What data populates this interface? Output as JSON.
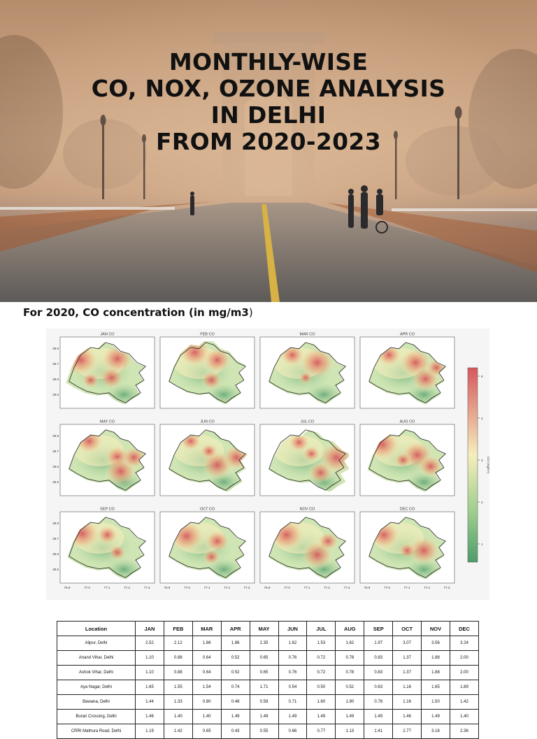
{
  "hero": {
    "title_lines": [
      "MONTHLY-WISE",
      "CO, NOX, OZONE ANALYSIS",
      "IN DELHI",
      "FROM 2020-2023"
    ]
  },
  "section": {
    "heading": "For 2020, CO concentration (in mg/m3",
    "heading_close": ")"
  },
  "maps": {
    "panels": [
      {
        "title": "JAN CO",
        "hot": [
          [
            0.18,
            0.3,
            1.0
          ],
          [
            0.62,
            0.28,
            0.9
          ],
          [
            0.55,
            0.58,
            0.7
          ],
          [
            0.3,
            0.62,
            0.5
          ]
        ]
      },
      {
        "title": "FEB CO",
        "hot": [
          [
            0.35,
            0.18,
            0.9
          ],
          [
            0.62,
            0.3,
            0.8
          ],
          [
            0.55,
            0.62,
            0.6
          ]
        ]
      },
      {
        "title": "MAR CO",
        "hot": [
          [
            0.32,
            0.22,
            0.7
          ],
          [
            0.62,
            0.34,
            1.0
          ],
          [
            0.48,
            0.58,
            0.4
          ]
        ]
      },
      {
        "title": "APR CO",
        "hot": [
          [
            0.28,
            0.22,
            0.7
          ],
          [
            0.6,
            0.34,
            0.9
          ],
          [
            0.72,
            0.6,
            0.8
          ],
          [
            0.85,
            0.42,
            0.6
          ]
        ]
      },
      {
        "title": "MAY CO",
        "hot": [
          [
            0.28,
            0.2,
            0.8
          ],
          [
            0.62,
            0.45,
            0.7
          ],
          [
            0.66,
            0.68,
            0.9
          ],
          [
            0.82,
            0.46,
            0.7
          ]
        ]
      },
      {
        "title": "JUN CO",
        "hot": [
          [
            0.3,
            0.2,
            0.6
          ],
          [
            0.62,
            0.58,
            0.9
          ],
          [
            0.85,
            0.46,
            0.8
          ],
          [
            0.52,
            0.36,
            0.5
          ]
        ]
      },
      {
        "title": "JUL CO",
        "hot": [
          [
            0.4,
            0.22,
            0.6
          ],
          [
            0.85,
            0.46,
            1.0
          ],
          [
            0.66,
            0.7,
            0.7
          ],
          [
            0.55,
            0.4,
            0.5
          ]
        ]
      },
      {
        "title": "AUG CO",
        "hot": [
          [
            0.2,
            0.25,
            1.0
          ],
          [
            0.62,
            0.42,
            0.9
          ],
          [
            0.78,
            0.6,
            0.7
          ],
          [
            0.45,
            0.5,
            0.5
          ]
        ]
      },
      {
        "title": "SEP CO",
        "hot": [
          [
            0.2,
            0.28,
            1.0
          ],
          [
            0.5,
            0.3,
            0.6
          ],
          [
            0.62,
            0.58,
            0.5
          ]
        ]
      },
      {
        "title": "OCT CO",
        "hot": [
          [
            0.25,
            0.32,
            1.0
          ],
          [
            0.62,
            0.4,
            0.7
          ],
          [
            0.55,
            0.65,
            0.5
          ]
        ]
      },
      {
        "title": "NOV CO",
        "hot": [
          [
            0.25,
            0.3,
            1.0
          ],
          [
            0.62,
            0.62,
            0.9
          ],
          [
            0.75,
            0.4,
            0.6
          ]
        ]
      },
      {
        "title": "DEC CO",
        "hot": [
          [
            0.22,
            0.3,
            0.9
          ],
          [
            0.7,
            0.55,
            0.9
          ],
          [
            0.5,
            0.55,
            0.5
          ]
        ]
      }
    ],
    "y_ticks": [
      "28.9",
      "28.7",
      "28.6",
      "28.5"
    ],
    "x_ticks": [
      "76.9",
      "77.0",
      "77.1",
      "77.2",
      "77.3"
    ],
    "colorbar_ticks": [
      "5",
      "4",
      "3",
      "2",
      "1"
    ],
    "colorbar_label": "CO (mg/m³)",
    "colors": {
      "low": "#4e9c6c",
      "mid": "#f5eebd",
      "high": "#d6585d"
    }
  },
  "table": {
    "headers": [
      "Location",
      "JAN",
      "FEB",
      "MAR",
      "APR",
      "MAY",
      "JUN",
      "JUL",
      "AUG",
      "SEP",
      "OCT",
      "NOV",
      "DEC"
    ],
    "rows": [
      [
        "Alipur, Delhi",
        "2.52",
        "2.12",
        "1.86",
        "1.86",
        "2.35",
        "1.62",
        "1.53",
        "1.62",
        "1.97",
        "3.07",
        "3.56",
        "3.24"
      ],
      [
        "Anand Vihar, Delhi",
        "1.10",
        "0.88",
        "0.64",
        "0.52",
        "0.65",
        "0.76",
        "0.72",
        "0.78",
        "0.83",
        "1.37",
        "1.88",
        "2.00"
      ],
      [
        "Ashok Vihar, Delhi",
        "1.10",
        "0.88",
        "0.64",
        "0.52",
        "0.65",
        "0.76",
        "0.72",
        "0.78",
        "0.83",
        "1.37",
        "1.88",
        "2.00"
      ],
      [
        "Aya Nagar, Delhi",
        "1.65",
        "1.55",
        "1.54",
        "0.74",
        "1.71",
        "0.54",
        "0.50",
        "0.52",
        "0.63",
        "1.16",
        "1.65",
        "1.89"
      ],
      [
        "Bawana, Delhi",
        "1.44",
        "1.33",
        "0.80",
        "0.48",
        "0.58",
        "0.71",
        "1.60",
        "1.90",
        "0.78",
        "1.16",
        "1.50",
        "1.42"
      ],
      [
        "Burari Crossing, Delhi",
        "1.46",
        "1.40",
        "1.40",
        "1.49",
        "1.49",
        "1.49",
        "1.49",
        "1.49",
        "1.49",
        "1.46",
        "1.49",
        "1.40"
      ],
      [
        "CRRI Mathura Road, Delhi",
        "1.19",
        "1.42",
        "0.65",
        "0.43",
        "0.55",
        "0.66",
        "0.77",
        "1.13",
        "1.41",
        "2.77",
        "3.16",
        "2.36"
      ]
    ]
  }
}
